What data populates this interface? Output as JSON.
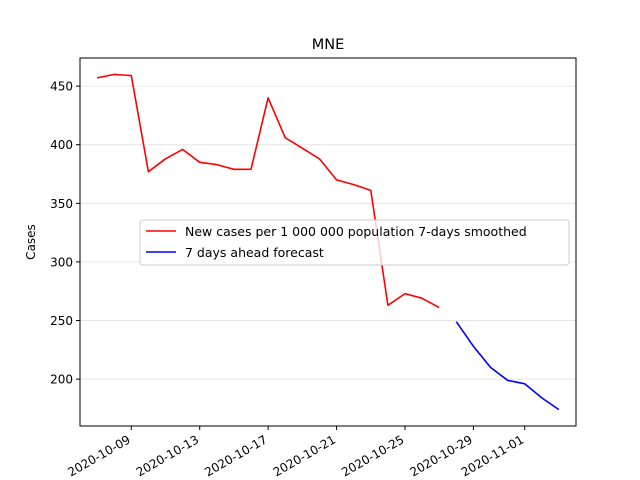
{
  "chart_data": {
    "type": "line",
    "title": "MNE",
    "xlabel": "",
    "ylabel": "Cases",
    "ylim": [
      160,
      474
    ],
    "xlim": [
      "2020-10-06",
      "2020-11-04"
    ],
    "grid": "horizontal",
    "legend_placement": "center-right",
    "x_ticks": [
      "2020-10-09",
      "2020-10-13",
      "2020-10-17",
      "2020-10-21",
      "2020-10-25",
      "2020-10-29",
      "2020-11-01"
    ],
    "y_ticks": [
      200,
      250,
      300,
      350,
      400,
      450
    ],
    "series": [
      {
        "name": "New cases per 1 000 000 population 7-days smoothed",
        "color": "#ff0000",
        "x": [
          "2020-10-07",
          "2020-10-08",
          "2020-10-09",
          "2020-10-10",
          "2020-10-11",
          "2020-10-12",
          "2020-10-13",
          "2020-10-14",
          "2020-10-15",
          "2020-10-16",
          "2020-10-17",
          "2020-10-18",
          "2020-10-19",
          "2020-10-20",
          "2020-10-21",
          "2020-10-22",
          "2020-10-23",
          "2020-10-24",
          "2020-10-25",
          "2020-10-26",
          "2020-10-27"
        ],
        "values": [
          457,
          460,
          459,
          377,
          388,
          396,
          385,
          383,
          379,
          379,
          440,
          406,
          397,
          388,
          370,
          366,
          361,
          263,
          273,
          269,
          261
        ]
      },
      {
        "name": "7 days ahead forecast",
        "color": "#0000ff",
        "x": [
          "2020-10-28",
          "2020-10-29",
          "2020-10-30",
          "2020-10-31",
          "2020-11-01",
          "2020-11-02",
          "2020-11-03"
        ],
        "values": [
          249,
          228,
          210,
          199,
          196,
          184,
          174
        ]
      }
    ]
  }
}
